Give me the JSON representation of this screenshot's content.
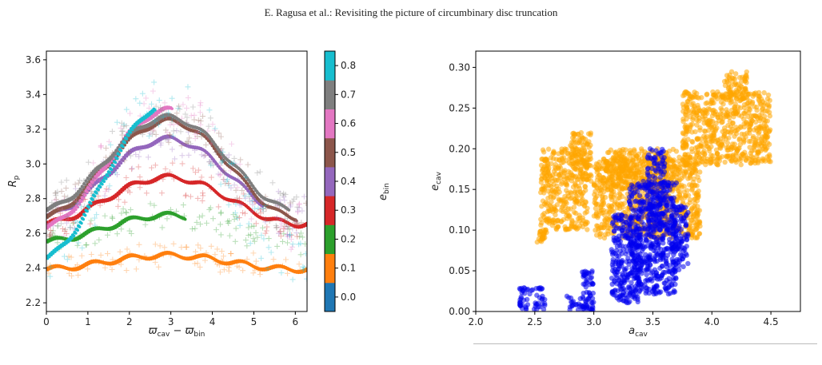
{
  "page_header": "E. Ragusa et al.: Revisiting the picture of circumbinary disc truncation",
  "chart_data": [
    {
      "type": "scatter",
      "xlabel_main": "ϖ",
      "xlabel_sub1": "cav",
      "xlabel_mid": " − ϖ",
      "xlabel_sub2": "bin",
      "ylabel_main": "R",
      "ylabel_sub": "p",
      "xlim": [
        0,
        6.283
      ],
      "ylim": [
        2.15,
        3.65
      ],
      "xticks": [
        0,
        1,
        2,
        3,
        4,
        5,
        6
      ],
      "yticks": [
        2.2,
        2.4,
        2.6,
        2.8,
        3.0,
        3.2,
        3.4,
        3.6
      ],
      "ytick_labels": [
        "2.2",
        "2.4",
        "2.6",
        "2.8",
        "3.0",
        "3.2",
        "3.4",
        "3.6"
      ],
      "colorbar": {
        "label_main": "e",
        "label_sub": "bin",
        "range": [
          -0.05,
          0.85
        ],
        "ticks": [
          "0.0",
          "0.1",
          "0.2",
          "0.3",
          "0.4",
          "0.5",
          "0.6",
          "0.7",
          "0.8"
        ],
        "colors": [
          "#1f77b4",
          "#ff7f0e",
          "#2ca02c",
          "#d62728",
          "#9467bd",
          "#8c564b",
          "#e377c2",
          "#7f7f7f",
          "#17becf"
        ]
      },
      "series": [
        {
          "ebin": 0.1,
          "color": "#ff7f0e",
          "mean": 2.435,
          "amp": 0.045,
          "x_end": 6.28
        },
        {
          "ebin": 0.2,
          "color": "#2ca02c",
          "mean": 2.63,
          "amp": 0.085,
          "x_end": 3.3
        },
        {
          "ebin": 0.3,
          "color": "#d62728",
          "mean": 2.79,
          "amp": 0.15,
          "x_end": 6.28
        },
        {
          "ebin": 0.4,
          "color": "#9467bd",
          "mean": 2.92,
          "amp": 0.25,
          "x_end": 5.2
        },
        {
          "ebin": 0.5,
          "color": "#8c564b",
          "mean": 2.97,
          "amp": 0.31,
          "x_end": 6.0
        },
        {
          "ebin": 0.6,
          "color": "#e377c2",
          "mean": 2.97,
          "amp": 0.38,
          "x_end": 3.0
        },
        {
          "ebin": 0.7,
          "color": "#7f7f7f",
          "mean": 3.0,
          "amp": 0.3,
          "x_end": 5.8
        },
        {
          "ebin": 0.8,
          "color": "#17becf",
          "mean": 2.9,
          "amp": 0.5,
          "x_end": 2.6
        }
      ]
    },
    {
      "type": "scatter",
      "xlabel_main": "a",
      "xlabel_sub": "cav",
      "ylabel_main": "e",
      "ylabel_sub": "cav",
      "xlim": [
        2.0,
        4.75
      ],
      "ylim": [
        0.0,
        0.32
      ],
      "xticks": [
        2.0,
        2.5,
        3.0,
        3.5,
        4.0,
        4.5
      ],
      "xtick_labels": [
        "2.0",
        "2.5",
        "3.0",
        "3.5",
        "4.0",
        "4.5"
      ],
      "yticks": [
        0.0,
        0.05,
        0.1,
        0.15,
        0.2,
        0.25,
        0.3
      ],
      "ytick_labels": [
        "0.00",
        "0.05",
        "0.10",
        "0.15",
        "0.20",
        "0.25",
        "0.30"
      ],
      "series": [
        {
          "color": "#ffa500",
          "clusters": [
            {
              "x0": 2.52,
              "x1": 2.6,
              "y0": 0.085,
              "y1": 0.1
            },
            {
              "x0": 2.55,
              "x1": 2.95,
              "y0": 0.1,
              "y1": 0.2
            },
            {
              "x0": 2.8,
              "x1": 2.98,
              "y0": 0.16,
              "y1": 0.22
            },
            {
              "x0": 3.0,
              "x1": 3.9,
              "y0": 0.09,
              "y1": 0.19
            },
            {
              "x0": 3.1,
              "x1": 3.7,
              "y0": 0.15,
              "y1": 0.2
            },
            {
              "x0": 3.75,
              "x1": 4.5,
              "y0": 0.18,
              "y1": 0.27
            },
            {
              "x0": 4.1,
              "x1": 4.3,
              "y0": 0.26,
              "y1": 0.295
            }
          ]
        },
        {
          "color": "#0000ee",
          "clusters": [
            {
              "x0": 2.37,
              "x1": 2.6,
              "y0": 0.002,
              "y1": 0.03
            },
            {
              "x0": 2.77,
              "x1": 3.0,
              "y0": 0.002,
              "y1": 0.02
            },
            {
              "x0": 2.9,
              "x1": 3.0,
              "y0": 0.0,
              "y1": 0.05
            },
            {
              "x0": 3.15,
              "x1": 3.4,
              "y0": 0.01,
              "y1": 0.12
            },
            {
              "x0": 3.3,
              "x1": 3.7,
              "y0": 0.02,
              "y1": 0.16
            },
            {
              "x0": 3.45,
              "x1": 3.6,
              "y0": 0.1,
              "y1": 0.2
            },
            {
              "x0": 3.65,
              "x1": 3.8,
              "y0": 0.05,
              "y1": 0.13
            }
          ]
        }
      ]
    }
  ]
}
